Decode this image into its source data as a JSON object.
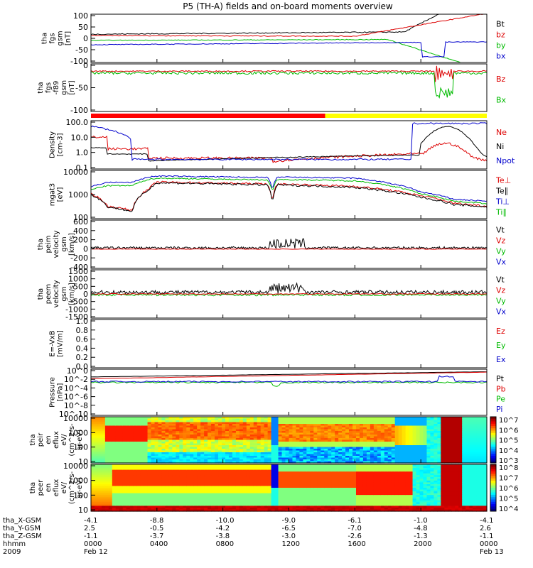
{
  "title": "P5 (TH-A) fields and on-board moments overview",
  "chart_data": {
    "type": "line",
    "panels": [
      {
        "id": "fgs",
        "ylabel": [
          "tha",
          "fgs",
          "gsm",
          "[nT]"
        ],
        "yticks": [
          "100",
          "50",
          "0",
          "-50",
          "-100"
        ],
        "legend": [
          {
            "name": "Bt",
            "color": "#000000"
          },
          {
            "name": "bz",
            "color": "#dd0000"
          },
          {
            "name": "by",
            "color": "#00bb00"
          },
          {
            "name": "bx",
            "color": "#0000cc"
          }
        ]
      },
      {
        "id": "fgl",
        "ylabel": [
          "tha",
          "fgs",
          "-f89",
          "gsm",
          "[nT]"
        ],
        "yticks": [
          "0",
          "-50",
          "-100"
        ],
        "legend": [
          {
            "name": "Bz",
            "color": "#dd0000"
          },
          {
            "name": "Bx",
            "color": "#00bb00"
          }
        ]
      },
      {
        "id": "density",
        "ylabel": [
          "Density",
          "[cm-3]"
        ],
        "yticks": [
          "100.0",
          "10.0",
          "1.0",
          "0.1"
        ],
        "legend": [
          {
            "name": "Ne",
            "color": "#dd0000"
          },
          {
            "name": "Ni",
            "color": "#000000"
          },
          {
            "name": "Npot",
            "color": "#0000cc"
          }
        ]
      },
      {
        "id": "temp",
        "ylabel": [
          "mgat3",
          "[eV]"
        ],
        "yticks": [
          "10000",
          "1000",
          "100"
        ],
        "legend": [
          {
            "name": "Te⊥",
            "color": "#dd0000"
          },
          {
            "name": "Te∥",
            "color": "#000000"
          },
          {
            "name": "Ti⊥",
            "color": "#0000cc"
          },
          {
            "name": "Ti∥",
            "color": "#00bb00"
          }
        ]
      },
      {
        "id": "peim",
        "ylabel": [
          "tha",
          "peim",
          "velocity",
          "gsm",
          "[km/s]"
        ],
        "yticks": [
          "600",
          "400",
          "200",
          "0",
          "-200",
          "-400"
        ],
        "legend": [
          {
            "name": "Vt",
            "color": "#000000"
          },
          {
            "name": "Vz",
            "color": "#dd0000"
          },
          {
            "name": "Vy",
            "color": "#00bb00"
          },
          {
            "name": "Vx",
            "color": "#0000cc"
          }
        ]
      },
      {
        "id": "peem",
        "ylabel": [
          "tha",
          "peem",
          "velocity",
          "gsm",
          "[km/s]"
        ],
        "yticks": [
          "1500",
          "1000",
          "500",
          "0",
          "-500",
          "-1000",
          "-1500"
        ],
        "legend": [
          {
            "name": "Vt",
            "color": "#000000"
          },
          {
            "name": "Vz",
            "color": "#dd0000"
          },
          {
            "name": "Vy",
            "color": "#00bb00"
          },
          {
            "name": "Vx",
            "color": "#0000cc"
          }
        ]
      },
      {
        "id": "efield",
        "ylabel": [
          "E=-VxB",
          "[mV/m]"
        ],
        "yticks": [
          "1.0",
          "0.8",
          "0.6",
          "0.4",
          "0.2",
          "0.0"
        ],
        "legend": [
          {
            "name": "Ez",
            "color": "#dd0000"
          },
          {
            "name": "Ey",
            "color": "#00bb00"
          },
          {
            "name": "Ex",
            "color": "#0000cc"
          }
        ]
      },
      {
        "id": "pressure",
        "ylabel": [
          "Pressure",
          "[nPa]"
        ],
        "yticks": [
          "10^0",
          "10^-2",
          "10^-4",
          "10^-6",
          "10^-8",
          "10^-10"
        ],
        "legend": [
          {
            "name": "Pt",
            "color": "#000000"
          },
          {
            "name": "Pb",
            "color": "#dd0000"
          },
          {
            "name": "Pe",
            "color": "#00bb00"
          },
          {
            "name": "Pi",
            "color": "#0000cc"
          }
        ]
      },
      {
        "id": "peir",
        "ylabel": [
          "tha",
          "peir",
          "en",
          "eflux",
          "eV/",
          "(cm^2-s-",
          "sr-eV)"
        ],
        "yticks": [
          "10000",
          "1000",
          "100",
          "10"
        ],
        "colorbar": [
          "10^7",
          "10^6",
          "10^5",
          "10^4",
          "10^3"
        ]
      },
      {
        "id": "peer",
        "ylabel": [
          "tha",
          "peer",
          "en",
          "eflux",
          "eV/",
          "(cm^2-s-",
          "sr-eV)"
        ],
        "yticks": [
          "10000",
          "1000",
          "100",
          "10"
        ],
        "colorbar": [
          "10^8",
          "10^7",
          "10^6",
          "10^5",
          "10^4"
        ]
      }
    ],
    "x_axis": {
      "rows": [
        {
          "label": "tha_X-GSM",
          "values": [
            "-4.1",
            "-8.8",
            "-10.0",
            "-9.0",
            "-6.1",
            "-1.0",
            "-4.1"
          ]
        },
        {
          "label": "tha_Y-GSM",
          "values": [
            "2.5",
            "-0.5",
            "-4.2",
            "-6.5",
            "-7.0",
            "-4.8",
            "2.6"
          ]
        },
        {
          "label": "tha_Z-GSM",
          "values": [
            "-1.1",
            "-3.7",
            "-3.8",
            "-3.0",
            "-2.6",
            "-1.3",
            "-1.1"
          ]
        },
        {
          "label": "hhmm",
          "values": [
            "0000",
            "0400",
            "0800",
            "1200",
            "1600",
            "2000",
            "0000"
          ]
        },
        {
          "label": "2009",
          "values": [
            "Feb 12",
            "",
            "",
            "",
            "",
            "",
            "Feb 13"
          ]
        }
      ],
      "hours": [
        0,
        4,
        8,
        12,
        16,
        20,
        24
      ]
    },
    "mode_bar": {
      "red_until_hour": 14.2,
      "colors": [
        "#ff0000",
        "#ffff00"
      ]
    }
  }
}
